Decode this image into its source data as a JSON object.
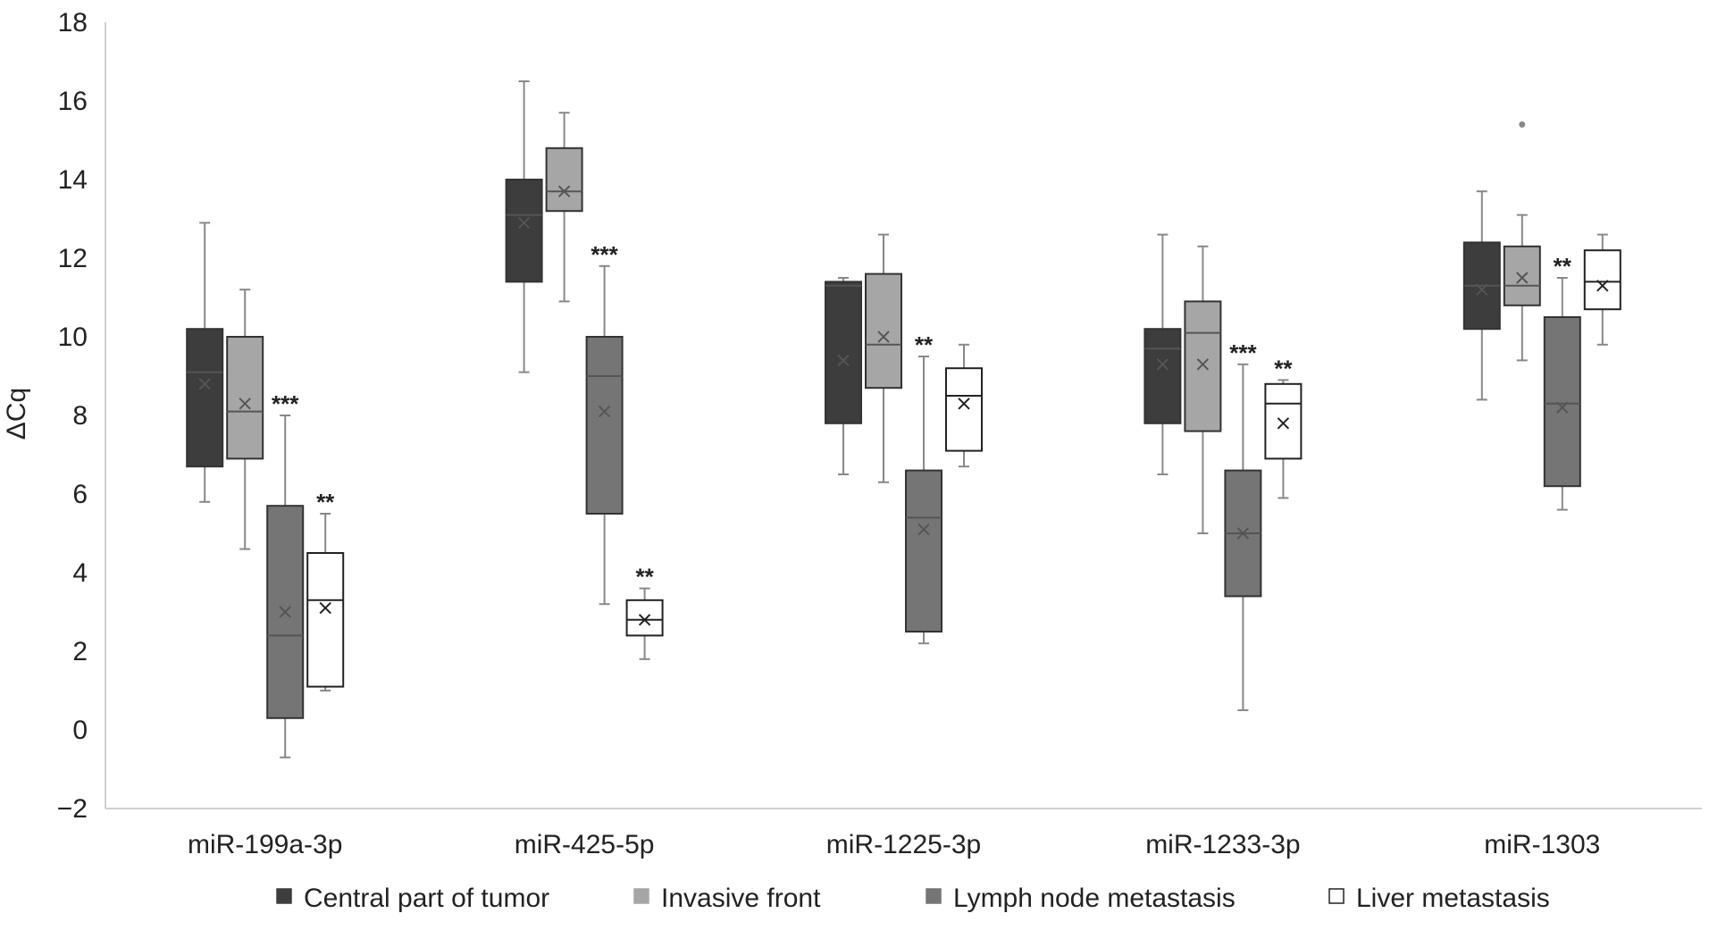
{
  "chart_data": {
    "type": "box",
    "ylabel": "ΔCq",
    "xlabel": "",
    "ylim": [
      -2,
      18
    ],
    "yticks": [
      -2,
      0,
      2,
      4,
      6,
      8,
      10,
      12,
      14,
      16,
      18
    ],
    "grid": false,
    "legend_position": "bottom",
    "categories": [
      "miR-199a-3p",
      "miR-425-5p",
      "miR-1225-3p",
      "miR-1233-3p",
      "miR-1303"
    ],
    "series": [
      {
        "name": "Central part of tumor",
        "color": "#3d3d3d",
        "boxes": [
          {
            "min": 5.8,
            "q1": 6.7,
            "median": 9.1,
            "q3": 10.2,
            "max": 12.9,
            "mean": 8.8,
            "significance": ""
          },
          {
            "min": 9.1,
            "q1": 11.4,
            "median": 13.1,
            "q3": 14.0,
            "max": 16.5,
            "mean": 12.9,
            "significance": ""
          },
          {
            "min": 6.5,
            "q1": 7.8,
            "median": 11.3,
            "q3": 11.4,
            "max": 11.5,
            "mean": 9.4,
            "significance": ""
          },
          {
            "min": 6.5,
            "q1": 7.8,
            "median": 9.7,
            "q3": 10.2,
            "max": 12.6,
            "mean": 9.3,
            "significance": ""
          },
          {
            "min": 8.4,
            "q1": 10.2,
            "median": 11.3,
            "q3": 12.4,
            "max": 13.7,
            "mean": 11.2,
            "significance": ""
          }
        ]
      },
      {
        "name": "Invasive front",
        "color": "#a6a6a6",
        "boxes": [
          {
            "min": 4.6,
            "q1": 6.9,
            "median": 8.1,
            "q3": 10.0,
            "max": 11.2,
            "mean": 8.3,
            "significance": ""
          },
          {
            "min": 10.9,
            "q1": 13.2,
            "median": 13.7,
            "q3": 14.8,
            "max": 15.7,
            "mean": 13.7,
            "significance": ""
          },
          {
            "min": 6.3,
            "q1": 8.7,
            "median": 9.8,
            "q3": 11.6,
            "max": 12.6,
            "mean": 10.0,
            "significance": ""
          },
          {
            "min": 5.0,
            "q1": 7.6,
            "median": 10.1,
            "q3": 10.9,
            "max": 12.3,
            "mean": 9.3,
            "significance": ""
          },
          {
            "min": 9.4,
            "q1": 10.8,
            "median": 11.3,
            "q3": 12.3,
            "max": 13.1,
            "mean": 11.5,
            "outliers": [
              15.4
            ],
            "significance": ""
          }
        ]
      },
      {
        "name": "Lymph node metastasis",
        "color": "#757575",
        "boxes": [
          {
            "min": -0.7,
            "q1": 0.3,
            "median": 2.4,
            "q3": 5.7,
            "max": 8.0,
            "mean": 3.0,
            "significance": "***"
          },
          {
            "min": 3.2,
            "q1": 5.5,
            "median": 9.0,
            "q3": 10.0,
            "max": 11.8,
            "mean": 8.1,
            "significance": "***"
          },
          {
            "min": 2.2,
            "q1": 2.5,
            "median": 5.4,
            "q3": 6.6,
            "max": 9.5,
            "mean": 5.1,
            "significance": "**"
          },
          {
            "min": 0.5,
            "q1": 3.4,
            "median": 5.0,
            "q3": 6.6,
            "max": 9.3,
            "mean": 5.0,
            "significance": "***"
          },
          {
            "min": 5.6,
            "q1": 6.2,
            "median": 8.3,
            "q3": 10.5,
            "max": 11.5,
            "mean": 8.2,
            "significance": "**"
          }
        ]
      },
      {
        "name": "Liver metastasis",
        "color": "#ffffff",
        "boxes": [
          {
            "min": 1.0,
            "q1": 1.1,
            "median": 3.3,
            "q3": 4.5,
            "max": 5.5,
            "mean": 3.1,
            "significance": "**"
          },
          {
            "min": 1.8,
            "q1": 2.4,
            "median": 2.8,
            "q3": 3.3,
            "max": 3.6,
            "mean": 2.8,
            "significance": "**"
          },
          {
            "min": 6.7,
            "q1": 7.1,
            "median": 8.5,
            "q3": 9.2,
            "max": 9.8,
            "mean": 8.3,
            "significance": ""
          },
          {
            "min": 5.9,
            "q1": 6.9,
            "median": 8.3,
            "q3": 8.8,
            "max": 8.9,
            "mean": 7.8,
            "significance": "**"
          },
          {
            "min": 9.8,
            "q1": 10.7,
            "median": 11.4,
            "q3": 12.2,
            "max": 12.6,
            "mean": 11.3,
            "significance": ""
          }
        ]
      }
    ]
  }
}
